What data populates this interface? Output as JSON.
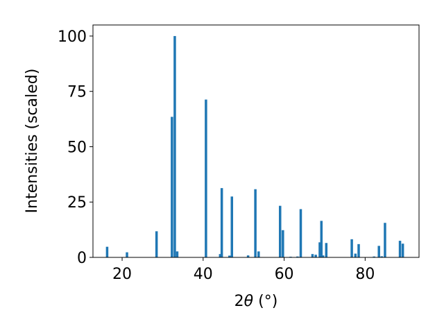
{
  "chart_data": {
    "type": "bar",
    "title": "",
    "xlabel_prefix": "2",
    "xlabel_theta": "θ",
    "xlabel_unit": " (°)",
    "ylabel": "Intensities (scaled)",
    "xlim": [
      12.8,
      93.3
    ],
    "ylim": [
      0,
      105
    ],
    "bar_width": 0.6,
    "bar_color": "#1f77b4",
    "grid": false,
    "legend": "none",
    "xticks": [
      {
        "value": 20,
        "label": "20"
      },
      {
        "value": 40,
        "label": "40"
      },
      {
        "value": 60,
        "label": "60"
      },
      {
        "value": 80,
        "label": "80"
      }
    ],
    "yticks": [
      {
        "value": 0,
        "label": "0"
      },
      {
        "value": 25,
        "label": "25"
      },
      {
        "value": 50,
        "label": "50"
      },
      {
        "value": 75,
        "label": "75"
      },
      {
        "value": 100,
        "label": "100"
      }
    ],
    "x": [
      16.3,
      21.2,
      28.5,
      32.3,
      33.0,
      33.6,
      40.7,
      44.2,
      44.6,
      46.5,
      47.1,
      51.1,
      52.9,
      53.7,
      59.0,
      59.7,
      61.6,
      63.3,
      64.1,
      67.0,
      67.8,
      68.8,
      69.2,
      69.6,
      70.4,
      76.7,
      77.6,
      78.4,
      82.2,
      83.4,
      84.1,
      84.9,
      88.6,
      89.3
    ],
    "values": [
      4.8,
      2.3,
      11.8,
      63.5,
      100,
      2.7,
      71.3,
      1.5,
      31.3,
      0.8,
      27.5,
      0.9,
      30.8,
      2.7,
      23.3,
      12.3,
      0.3,
      0.4,
      21.8,
      1.5,
      1.2,
      6.8,
      16.5,
      0.9,
      6.5,
      8.2,
      1.7,
      6.0,
      0.4,
      5.2,
      0.5,
      15.6,
      7.5,
      6.2
    ]
  }
}
